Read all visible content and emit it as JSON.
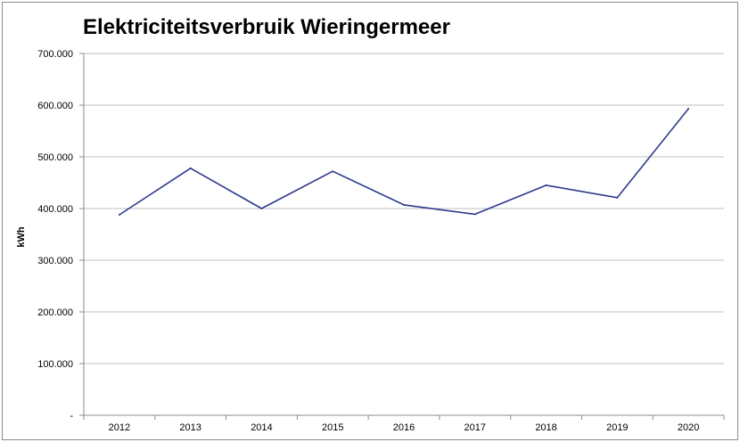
{
  "chart_data": {
    "type": "line",
    "title": "Elektriciteitsverbruik Wieringermeer",
    "xlabel": "",
    "ylabel": "kWh",
    "categories": [
      "2012",
      "2013",
      "2014",
      "2015",
      "2016",
      "2017",
      "2018",
      "2019",
      "2020"
    ],
    "series": [
      {
        "values": [
          388000,
          478000,
          400000,
          472000,
          407000,
          389000,
          445000,
          421000,
          593000
        ],
        "color": "#2e3a8c"
      }
    ],
    "ylim": [
      0,
      700000
    ],
    "yticks": [
      0,
      100000,
      200000,
      300000,
      400000,
      500000,
      600000,
      700000
    ],
    "ytick_labels": [
      "-",
      "100.000",
      "200.000",
      "300.000",
      "400.000",
      "500.000",
      "600.000",
      "700.000"
    ],
    "grid": true,
    "legend": "none"
  }
}
